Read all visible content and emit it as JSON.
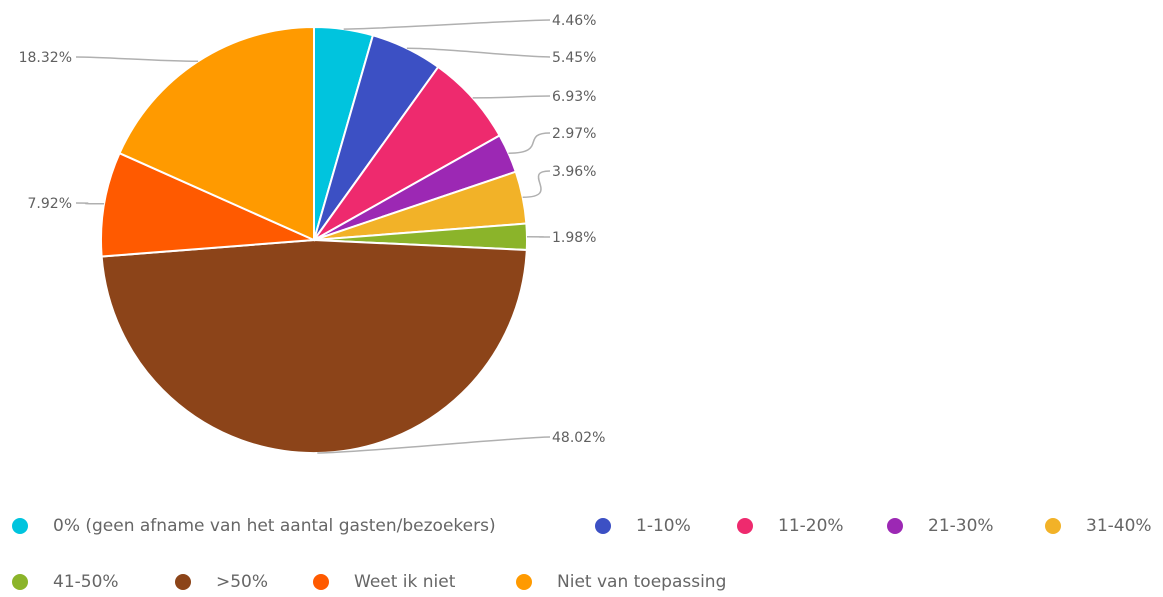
{
  "chart_data": {
    "type": "pie",
    "title": "",
    "slices": [
      {
        "name": "0% (geen afname van het aantal gasten/bezoekers)",
        "value": 4.46,
        "label": "4.46%",
        "color": "#00c4de"
      },
      {
        "name": "1-10%",
        "value": 5.45,
        "label": "5.45%",
        "color": "#3c50c4"
      },
      {
        "name": "11-20%",
        "value": 6.93,
        "label": "6.93%",
        "color": "#ee2a6e"
      },
      {
        "name": "21-30%",
        "value": 2.97,
        "label": "2.97%",
        "color": "#9c28b4"
      },
      {
        "name": "31-40%",
        "value": 3.96,
        "label": "3.96%",
        "color": "#f2b228"
      },
      {
        "name": "41-50%",
        "value": 1.98,
        "label": "1.98%",
        "color": "#8bb42a"
      },
      {
        "name": ">50%",
        "value": 48.02,
        "label": "48.02%",
        "color": "#8c4419"
      },
      {
        "name": "Weet ik niet",
        "value": 7.92,
        "label": "7.92%",
        "color": "#ff5a00"
      },
      {
        "name": "Niet van toepassing",
        "value": 18.32,
        "label": "18.32%",
        "color": "#ff9a00"
      }
    ],
    "legend_position": "bottom"
  }
}
